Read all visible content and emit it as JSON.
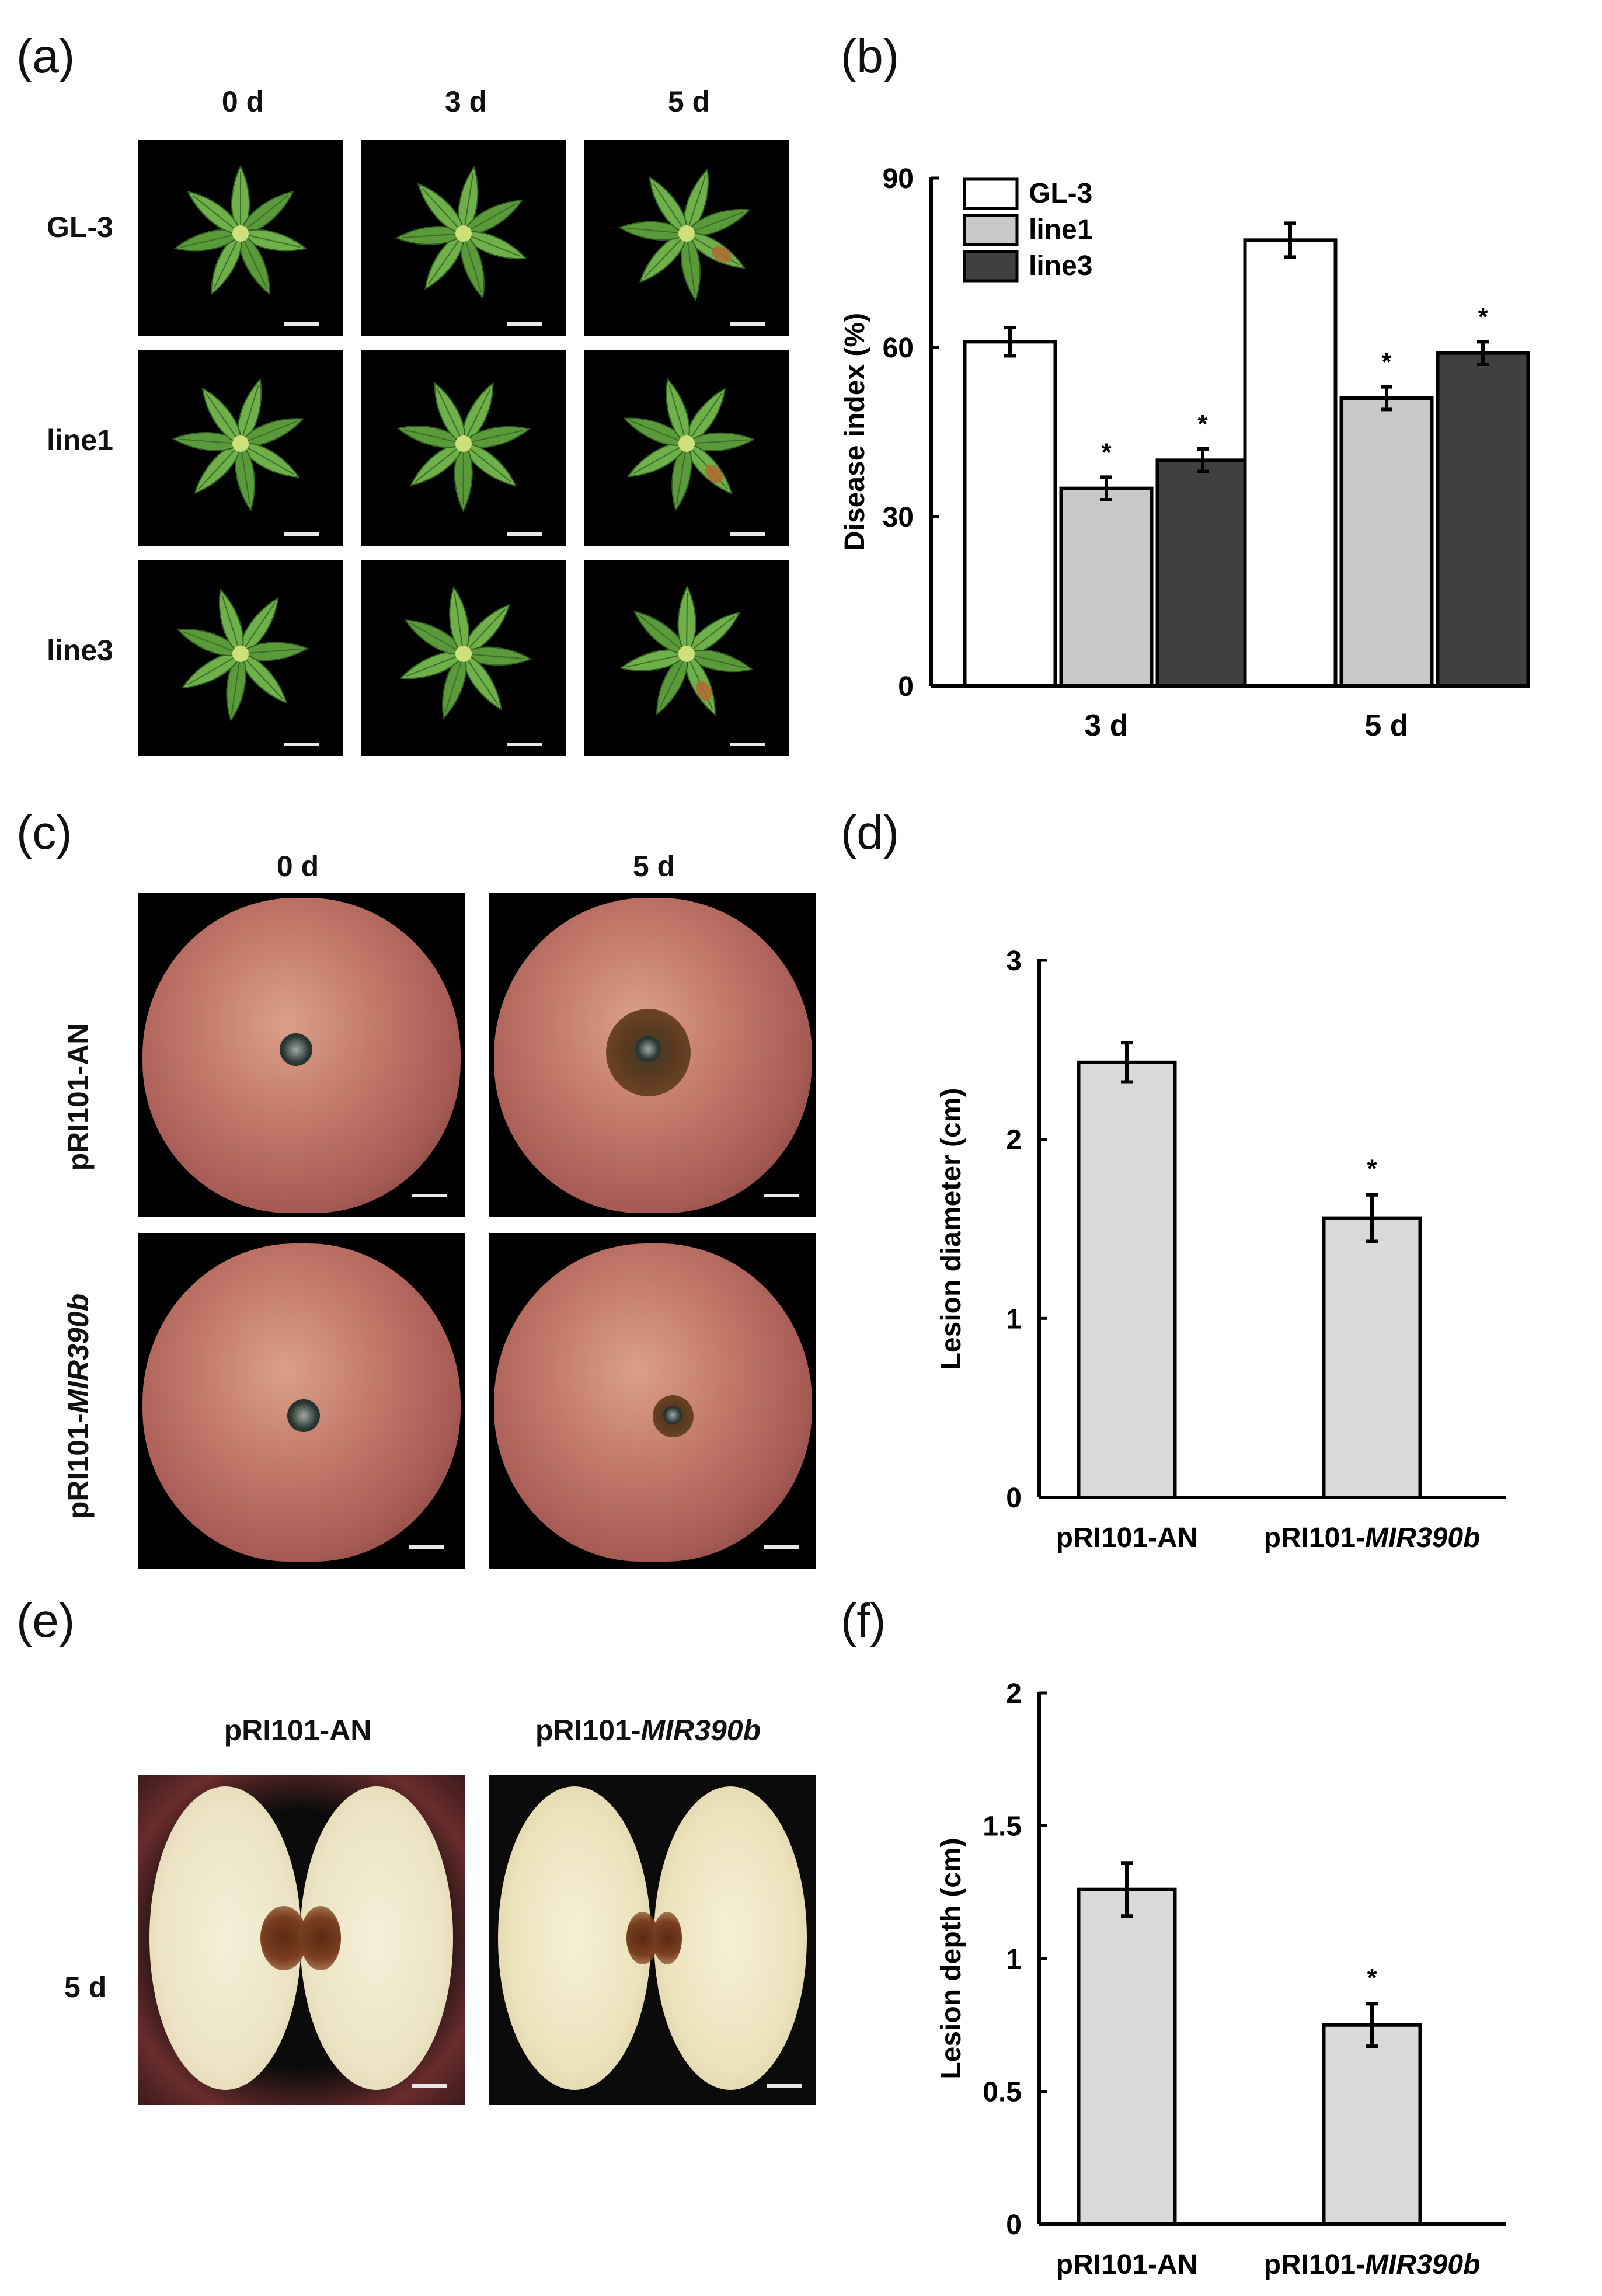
{
  "panels": {
    "a": {
      "letter": "(a)",
      "col_labels": [
        "0 d",
        "3 d",
        "5 d"
      ],
      "row_labels": [
        "GL-3",
        "line1",
        "line3"
      ]
    },
    "b": {
      "letter": "(b)",
      "chart_data": {
        "type": "bar",
        "categories": [
          "3 d",
          "5 d"
        ],
        "series": [
          {
            "name": "GL-3",
            "values": [
              61,
              79
            ],
            "errors": [
              2.5,
              3
            ],
            "sig": [
              "",
              ""
            ],
            "fill": "#ffffff"
          },
          {
            "name": "line1",
            "values": [
              35,
              51
            ],
            "errors": [
              2,
              2
            ],
            "sig": [
              "*",
              "*"
            ],
            "fill": "#c8c8c8"
          },
          {
            "name": "line3",
            "values": [
              40,
              59
            ],
            "errors": [
              2,
              2
            ],
            "sig": [
              "*",
              "*"
            ],
            "fill": "#404040"
          }
        ],
        "ylabel": "Disease index (%)",
        "ylim": [
          0,
          90
        ],
        "yticks": [
          0,
          30,
          60,
          90
        ],
        "legend_position": "top-left",
        "grid": false
      }
    },
    "c": {
      "letter": "(c)",
      "col_labels": [
        "0 d",
        "5 d"
      ],
      "row_labels": [
        "pRI101-AN",
        "pRI101-"
      ],
      "row_labels_italic": [
        "",
        "MIR390b"
      ]
    },
    "d": {
      "letter": "(d)",
      "chart_data": {
        "type": "bar",
        "categories": [
          "pRI101-AN",
          "pRI101-"
        ],
        "categories_italic": [
          "",
          "MIR390b"
        ],
        "values": [
          2.43,
          1.56
        ],
        "errors": [
          0.11,
          0.13
        ],
        "sig": [
          "",
          "*"
        ],
        "ylabel": "Lesion diameter (cm)",
        "ylim": [
          0,
          3
        ],
        "yticks": [
          0,
          1,
          2,
          3
        ],
        "fill": "#d9d9d9",
        "grid": false
      }
    },
    "e": {
      "letter": "(e)",
      "col_labels": [
        "pRI101-AN",
        "pRI101-"
      ],
      "col_labels_italic": [
        "",
        "MIR390b"
      ],
      "row_label": "5 d"
    },
    "f": {
      "letter": "(f)",
      "chart_data": {
        "type": "bar",
        "categories": [
          "pRI101-AN",
          "pRI101-"
        ],
        "categories_italic": [
          "",
          "MIR390b"
        ],
        "values": [
          1.26,
          0.75
        ],
        "errors": [
          0.1,
          0.08
        ],
        "sig": [
          "",
          "*"
        ],
        "ylabel": "Lesion depth (cm)",
        "ylim": [
          0,
          2
        ],
        "yticks": [
          0,
          0.5,
          1,
          1.5,
          2
        ],
        "ytick_labels": [
          "0",
          "0.5",
          "1",
          "1.5",
          "2"
        ],
        "fill": "#d9d9d9",
        "grid": false
      }
    }
  }
}
